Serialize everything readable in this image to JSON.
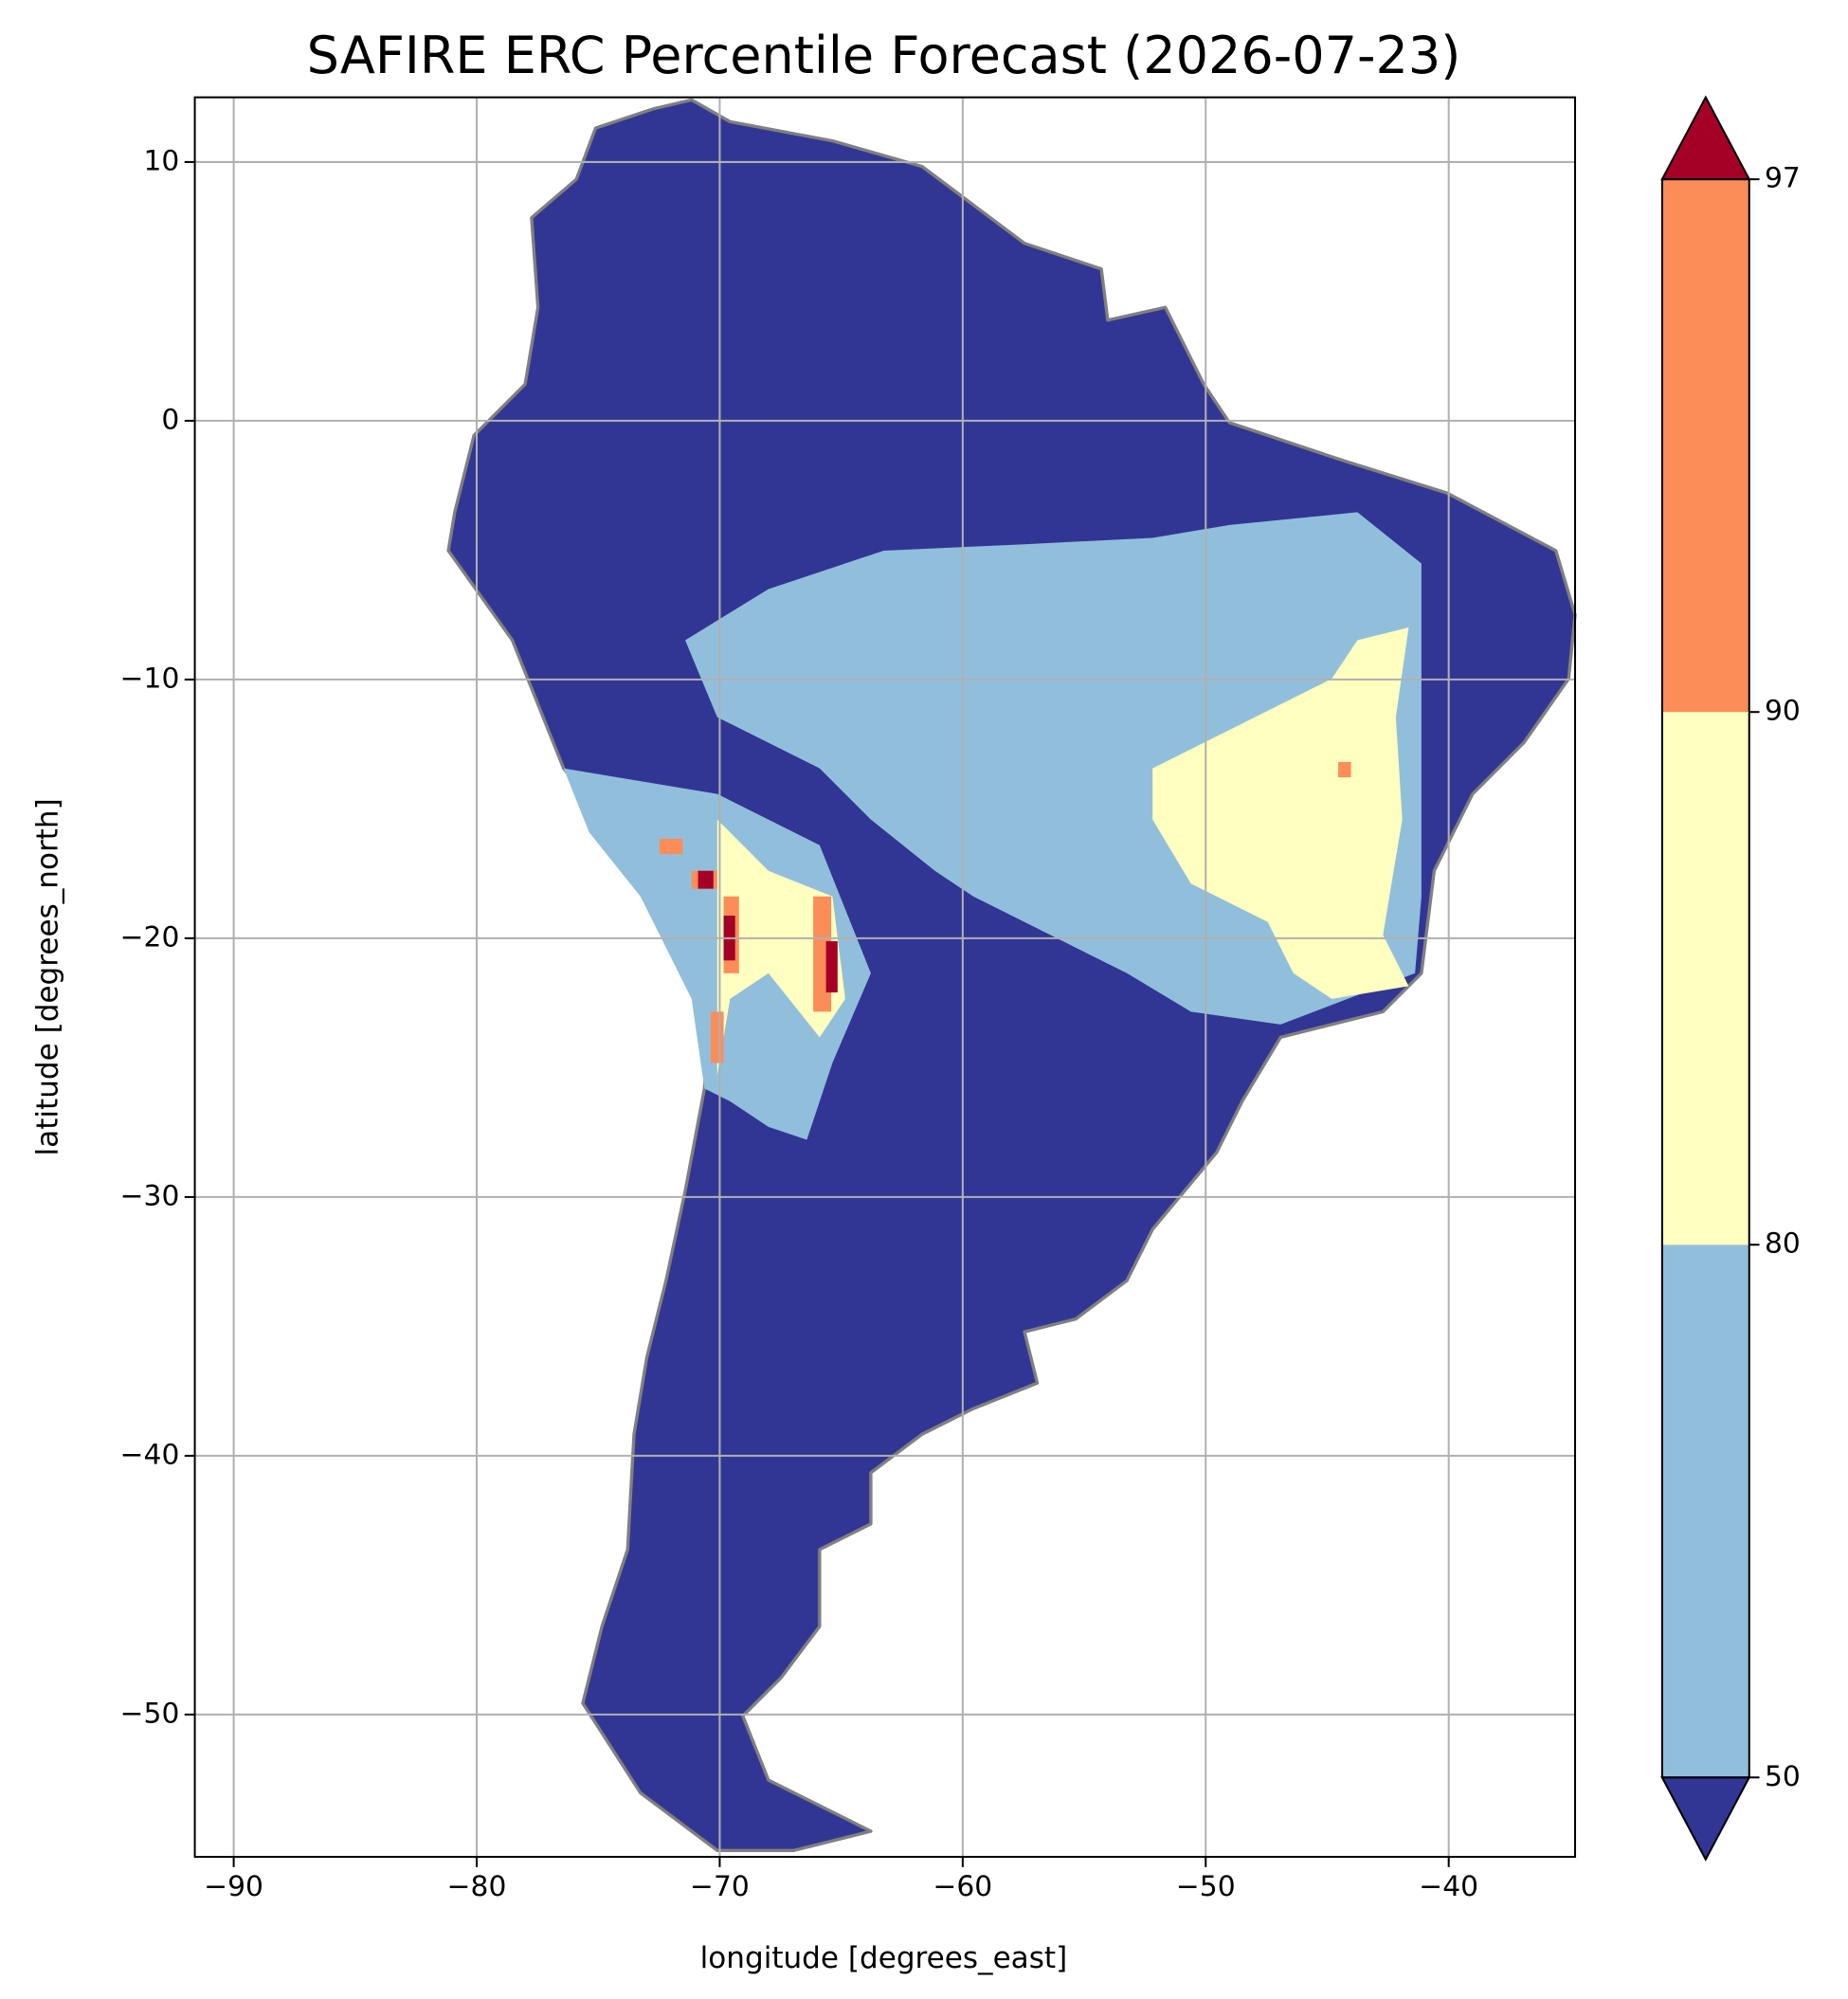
{
  "chart_data": {
    "type": "map",
    "title": "SAFIRE ERC Percentile Forecast (2026-07-23)",
    "x_label": "longitude [degrees_east]",
    "y_label": "latitude [degrees_north]",
    "xlim": [
      -91.6,
      -34.8
    ],
    "ylim": [
      -55.5,
      12.5
    ],
    "xticks": [
      {
        "value": -90,
        "label": "−90"
      },
      {
        "value": -80,
        "label": "−80"
      },
      {
        "value": -70,
        "label": "−70"
      },
      {
        "value": -60,
        "label": "−60"
      },
      {
        "value": -50,
        "label": "−50"
      },
      {
        "value": -40,
        "label": "−40"
      }
    ],
    "yticks": [
      10,
      0,
      {
        "value": -10,
        "label": "−10"
      },
      {
        "value": -20,
        "label": "−20"
      },
      {
        "value": -30,
        "label": "−30"
      },
      {
        "value": -40,
        "label": "−40"
      },
      {
        "value": -50,
        "label": "−50"
      }
    ],
    "grid": true,
    "grid_color": "#b0b0b0",
    "border_color": "#808080",
    "colorbar": {
      "levels": [
        50,
        80,
        90,
        97
      ],
      "colors": [
        "#313695",
        "#91bfdb",
        "#ffffbf",
        "#fc8d59",
        "#a50026"
      ]
    }
  }
}
